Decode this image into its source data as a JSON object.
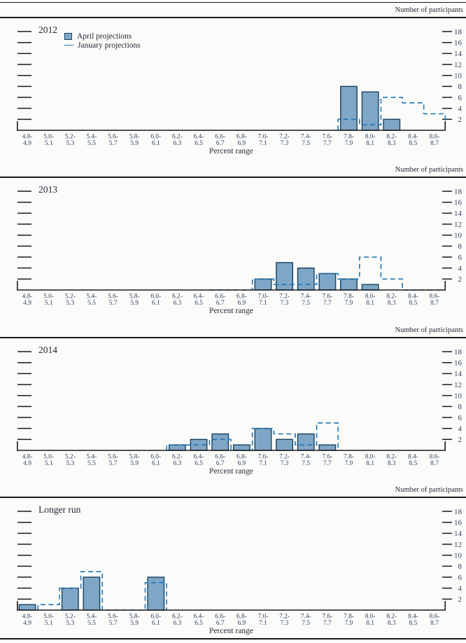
{
  "figure": {
    "background": "#fbfbfa",
    "participants_label": "Number of participants",
    "xlabel": "Percent range"
  },
  "legend": {
    "april_label": "April projections",
    "january_label": "January projections",
    "april_swatch_icon": "filled-square-icon",
    "january_swatch_icon": "dash-line-icon"
  },
  "colors": {
    "bar_fill": "#7EA6C7",
    "bar_stroke": "#17405e",
    "january_line": "#2077B4",
    "axis": "#1a1a1a",
    "tick_text": "#33435c",
    "text": "#1f2835"
  },
  "chart_data": {
    "type": "bar",
    "title": "Distribution of participants' projections (histograms, 4 panels)",
    "xlabel": "Percent range",
    "ylabel": "Number of participants",
    "y_ticks": [
      2,
      4,
      6,
      8,
      10,
      12,
      14,
      16,
      18
    ],
    "ylim": [
      0,
      19
    ],
    "x_bin_labels_top": [
      "4.8-",
      "5.0-",
      "5.2-",
      "5.4-",
      "5.6-",
      "5.8-",
      "6.0-",
      "6.2-",
      "6.4-",
      "6.6-",
      "6.8-",
      "7.0-",
      "7.2-",
      "7.4-",
      "7.6-",
      "7.8-",
      "8.0-",
      "8.2-",
      "8.4-",
      "8.6-"
    ],
    "x_bin_labels_bottom": [
      "4.9",
      "5.1",
      "5.3",
      "5.5",
      "5.7",
      "5.9",
      "6.1",
      "6.3",
      "6.5",
      "6.7",
      "6.9",
      "7.1",
      "7.3",
      "7.5",
      "7.7",
      "7.9",
      "8.1",
      "8.3",
      "8.5",
      "8.7"
    ],
    "categories": [
      "4.8-4.9",
      "5.0-5.1",
      "5.2-5.3",
      "5.4-5.5",
      "5.6-5.7",
      "5.8-5.9",
      "6.0-6.1",
      "6.2-6.3",
      "6.4-6.5",
      "6.6-6.7",
      "6.8-6.9",
      "7.0-7.1",
      "7.2-7.3",
      "7.4-7.5",
      "7.6-7.7",
      "7.8-7.9",
      "8.0-8.1",
      "8.2-8.3",
      "8.4-8.5",
      "8.6-8.7"
    ],
    "panels": [
      {
        "title": "2012",
        "has_legend": true,
        "series": [
          {
            "name": "April projections",
            "style": "bar",
            "values": [
              0,
              0,
              0,
              0,
              0,
              0,
              0,
              0,
              0,
              0,
              0,
              0,
              0,
              0,
              0,
              8,
              7,
              2,
              0,
              0
            ]
          },
          {
            "name": "January projections",
            "style": "dashed-step",
            "values": [
              0,
              0,
              0,
              0,
              0,
              0,
              0,
              0,
              0,
              0,
              0,
              0,
              0,
              0,
              0,
              2,
              1,
              6,
              5,
              3
            ]
          }
        ],
        "jan_zero_left_bin": null,
        "jan_zero_tail_right": true
      },
      {
        "title": "2013",
        "has_legend": false,
        "series": [
          {
            "name": "April projections",
            "style": "bar",
            "values": [
              0,
              0,
              0,
              0,
              0,
              0,
              0,
              0,
              0,
              0,
              0,
              2,
              5,
              4,
              3,
              2,
              1,
              0,
              0,
              0
            ]
          },
          {
            "name": "January projections",
            "style": "dashed-step",
            "values": [
              0,
              0,
              0,
              0,
              0,
              0,
              0,
              0,
              0,
              0,
              0,
              2,
              1,
              1,
              3,
              2,
              6,
              2,
              0,
              0
            ]
          }
        ],
        "jan_zero_left_bin": 9,
        "jan_zero_tail_right": true
      },
      {
        "title": "2014",
        "has_legend": false,
        "series": [
          {
            "name": "April projections",
            "style": "bar",
            "values": [
              0,
              0,
              0,
              0,
              0,
              0,
              0,
              1,
              2,
              3,
              1,
              4,
              2,
              3,
              1,
              0,
              0,
              0,
              0,
              0
            ]
          },
          {
            "name": "January projections",
            "style": "dashed-step",
            "values": [
              0,
              0,
              0,
              0,
              0,
              0,
              0,
              1,
              1,
              2,
              0,
              4,
              3,
              1,
              5,
              0,
              0,
              0,
              0,
              0
            ]
          }
        ],
        "jan_zero_left_bin": null,
        "jan_zero_tail_right": false
      },
      {
        "title": "Longer run",
        "has_legend": false,
        "series": [
          {
            "name": "April projections",
            "style": "bar",
            "values": [
              1,
              0,
              4,
              6,
              0,
              0,
              6,
              0,
              0,
              0,
              0,
              0,
              0,
              0,
              0,
              0,
              0,
              0,
              0,
              0
            ]
          },
          {
            "name": "January projections",
            "style": "dashed-step",
            "values": [
              0,
              1,
              4,
              7,
              0,
              0,
              5,
              0,
              0,
              0,
              0,
              0,
              0,
              0,
              0,
              0,
              0,
              0,
              0,
              0
            ]
          }
        ],
        "jan_zero_left_bin": null,
        "jan_zero_tail_right": false
      }
    ]
  }
}
